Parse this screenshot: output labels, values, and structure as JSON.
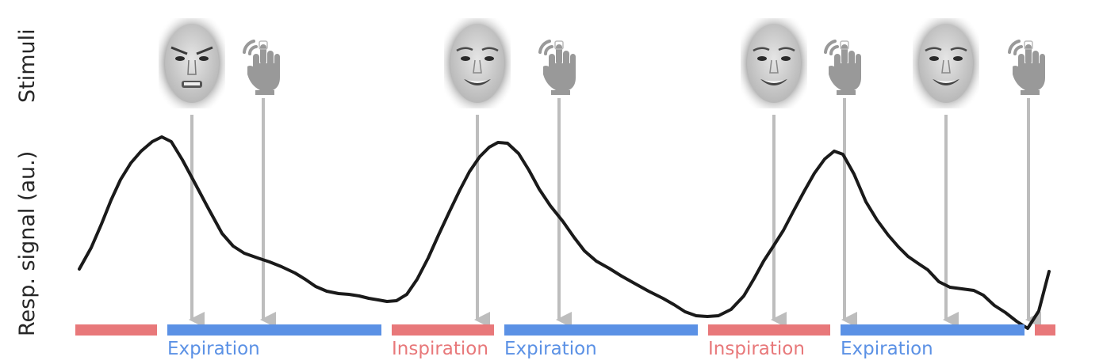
{
  "labels": {
    "stimuli": "Stimuli",
    "resp_signal": "Resp. signal (au.)"
  },
  "colors": {
    "inspiration": "#e8787a",
    "expiration": "#5b91e5",
    "signal": "#1a1a1a",
    "arrow": "#bdbdbd",
    "hand": "#999999"
  },
  "stimuli": [
    {
      "type": "face",
      "expression": "angry"
    },
    {
      "type": "button-press"
    },
    {
      "type": "face",
      "expression": "happy"
    },
    {
      "type": "button-press"
    },
    {
      "type": "face",
      "expression": "happy"
    },
    {
      "type": "button-press"
    },
    {
      "type": "face",
      "expression": "happy"
    },
    {
      "type": "button-press"
    }
  ],
  "phases": [
    {
      "phase": "inspiration",
      "label": ""
    },
    {
      "phase": "expiration",
      "label": "Expiration"
    },
    {
      "phase": "inspiration",
      "label": "Inspiration"
    },
    {
      "phase": "expiration",
      "label": "Expiration"
    },
    {
      "phase": "inspiration",
      "label": "Inspiration"
    },
    {
      "phase": "expiration",
      "label": "Expiration"
    },
    {
      "phase": "inspiration",
      "label": ""
    }
  ]
}
